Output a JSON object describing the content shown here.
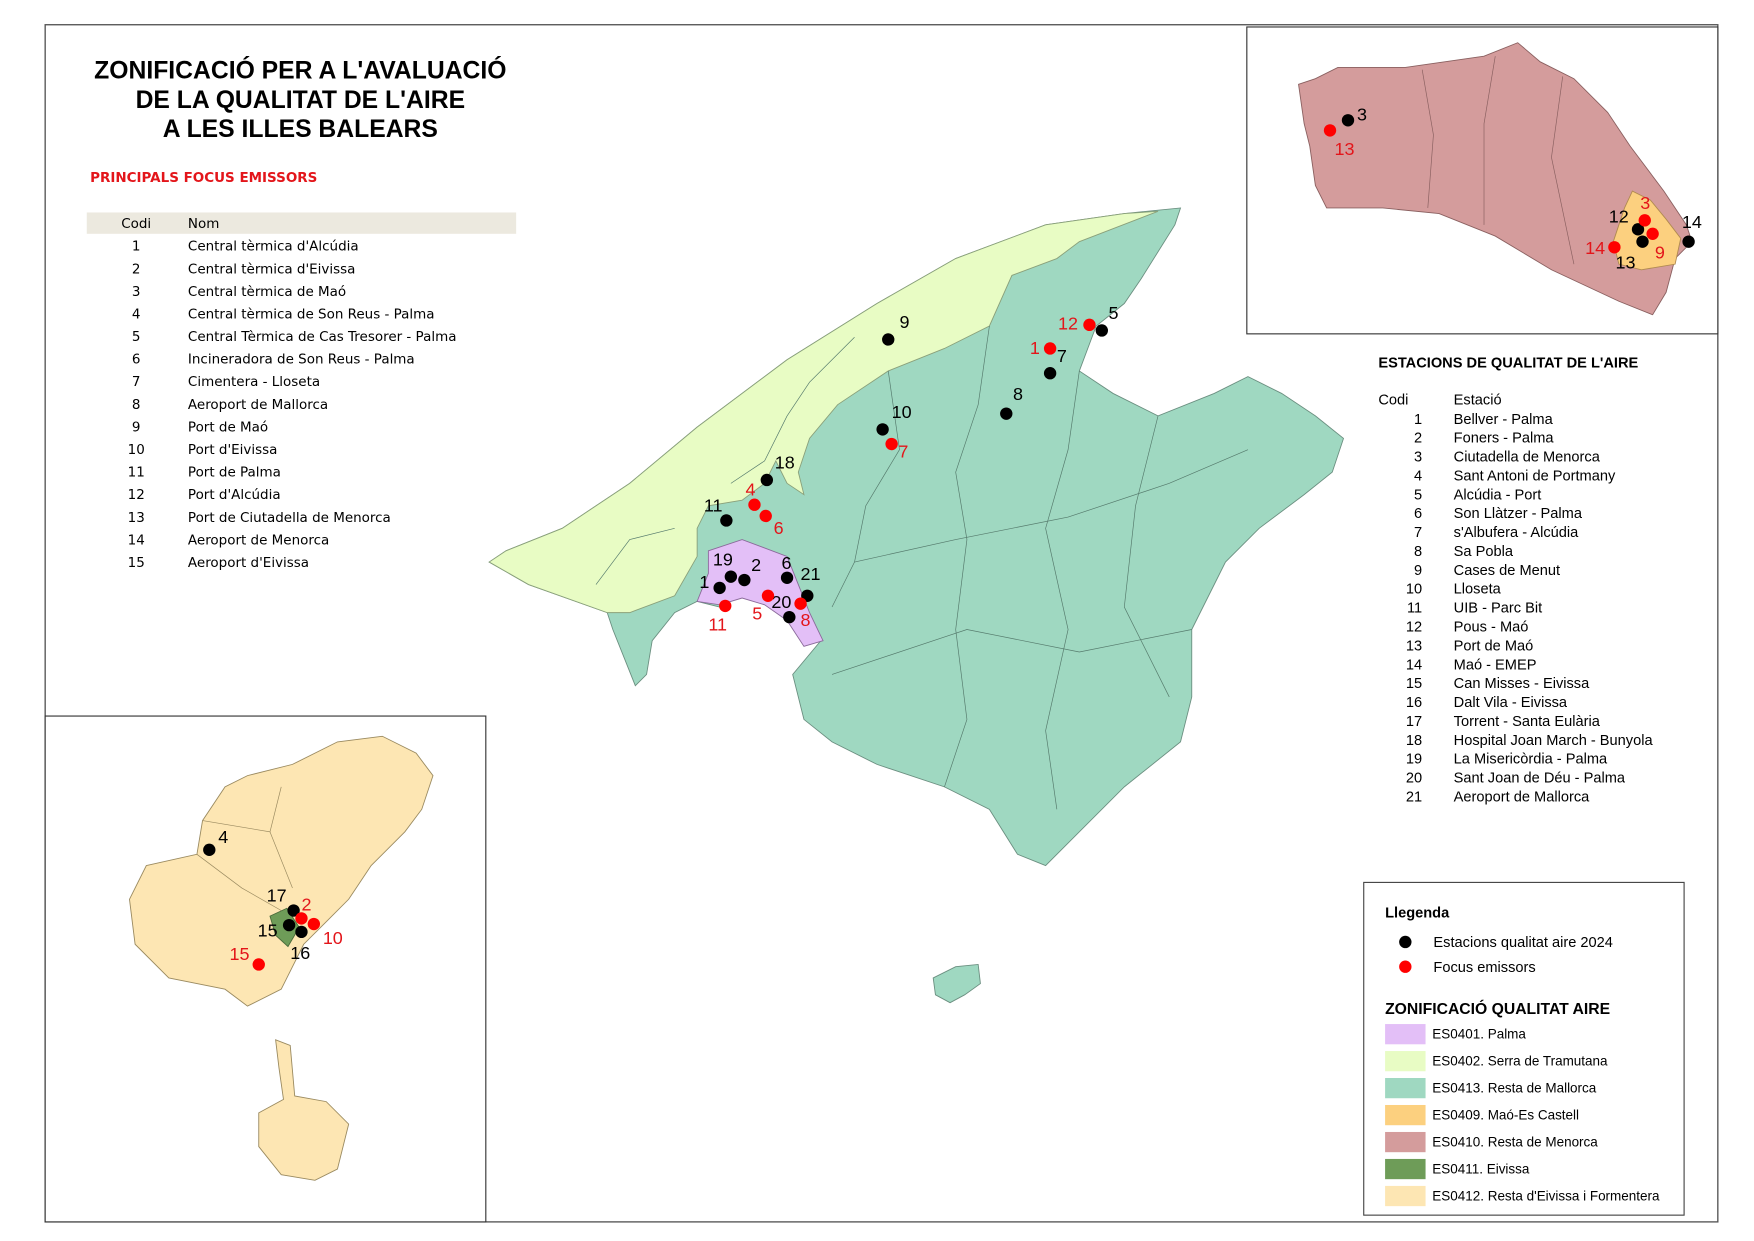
{
  "title": [
    "ZONIFICACIÓ PER A L'AVALUACIÓ",
    "DE LA QUALITAT DE L'AIRE",
    "A LES ILLES BALEARS"
  ],
  "emitters_table": {
    "heading": "PRINCIPALS FOCUS EMISSORS",
    "heading_color": "#e3151a",
    "col_code": "Codi",
    "col_name": "Nom",
    "rows": [
      {
        "code": "1",
        "name": "Central tèrmica d'Alcúdia"
      },
      {
        "code": "2",
        "name": "Central tèrmica d'Eivissa"
      },
      {
        "code": "3",
        "name": "Central tèrmica de Maó"
      },
      {
        "code": "4",
        "name": "Central tèrmica de Son Reus - Palma"
      },
      {
        "code": "5",
        "name": "Central Tèrmica de Cas Tresorer - Palma"
      },
      {
        "code": "6",
        "name": "Incineradora de Son Reus - Palma"
      },
      {
        "code": "7",
        "name": "Cimentera - Lloseta"
      },
      {
        "code": "8",
        "name": "Aeroport de Mallorca"
      },
      {
        "code": "9",
        "name": "Port de Maó"
      },
      {
        "code": "10",
        "name": "Port d'Eivissa"
      },
      {
        "code": "11",
        "name": "Port de Palma"
      },
      {
        "code": "12",
        "name": "Port d'Alcúdia"
      },
      {
        "code": "13",
        "name": "Port de Ciutadella de Menorca"
      },
      {
        "code": "14",
        "name": "Aeroport de Menorca"
      },
      {
        "code": "15",
        "name": "Aeroport d'Eivissa"
      }
    ]
  },
  "stations_table": {
    "heading": "ESTACIONS DE QUALITAT DE L'AIRE",
    "col_code": "Codi",
    "col_name": "Estació",
    "rows": [
      {
        "code": "1",
        "name": "Bellver - Palma"
      },
      {
        "code": "2",
        "name": "Foners - Palma"
      },
      {
        "code": "3",
        "name": "Ciutadella de Menorca"
      },
      {
        "code": "4",
        "name": "Sant Antoni de Portmany"
      },
      {
        "code": "5",
        "name": "Alcúdia - Port"
      },
      {
        "code": "6",
        "name": "Son Llàtzer - Palma"
      },
      {
        "code": "7",
        "name": "s'Albufera - Alcúdia"
      },
      {
        "code": "8",
        "name": "Sa Pobla"
      },
      {
        "code": "9",
        "name": "Cases de Menut"
      },
      {
        "code": "10",
        "name": "Lloseta"
      },
      {
        "code": "11",
        "name": "UIB - Parc Bit"
      },
      {
        "code": "12",
        "name": "Pous - Maó"
      },
      {
        "code": "13",
        "name": "Port de Maó"
      },
      {
        "code": "14",
        "name": "Maó - EMEP"
      },
      {
        "code": "15",
        "name": "Can Misses - Eivissa"
      },
      {
        "code": "16",
        "name": "Dalt Vila - Eivissa"
      },
      {
        "code": "17",
        "name": "Torrent - Santa Eulària"
      },
      {
        "code": "18",
        "name": "Hospital Joan March - Bunyola"
      },
      {
        "code": "19",
        "name": "La Misericòrdia - Palma"
      },
      {
        "code": "20",
        "name": "Sant Joan de Déu - Palma"
      },
      {
        "code": "21",
        "name": "Aeroport de Mallorca"
      }
    ]
  },
  "legend": {
    "title": "Llegenda",
    "symbols": [
      {
        "label": "Estacions qualitat aire 2024",
        "color": "#000000"
      },
      {
        "label": "Focus emissors",
        "color": "#ff0000"
      }
    ],
    "zones_title": "ZONIFICACIÓ QUALITAT AIRE",
    "zones": [
      {
        "label": "ES0401. Palma",
        "color": "#e3bff7"
      },
      {
        "label": "ES0402. Serra de Tramutana",
        "color": "#e8fcc4"
      },
      {
        "label": "ES0413. Resta de Mallorca",
        "color": "#9fd8c1"
      },
      {
        "label": "ES0409. Maó-Es Castell",
        "color": "#fcd07f"
      },
      {
        "label": "ES0410. Resta de Menorca",
        "color": "#d49c9c"
      },
      {
        "label": "ES0411. Eivissa",
        "color": "#6e9c58"
      },
      {
        "label": "ES0412. Resta d'Eivissa i Formentera",
        "color": "#fde6b3"
      }
    ]
  },
  "markers": {
    "mallorca_stations": [
      "9",
      "5",
      "7",
      "8",
      "10",
      "18",
      "11",
      "19",
      "2",
      "6",
      "1",
      "21",
      "20"
    ],
    "mallorca_emitters": [
      "12",
      "1",
      "7",
      "4",
      "6",
      "5",
      "11",
      "8"
    ],
    "menorca_stations": [
      "3",
      "12",
      "13",
      "14"
    ],
    "menorca_emitters": [
      "13",
      "3",
      "9",
      "14"
    ],
    "ibiza_stations": [
      "4",
      "17",
      "15",
      "16"
    ],
    "ibiza_emitters": [
      "2",
      "10",
      "15"
    ]
  }
}
